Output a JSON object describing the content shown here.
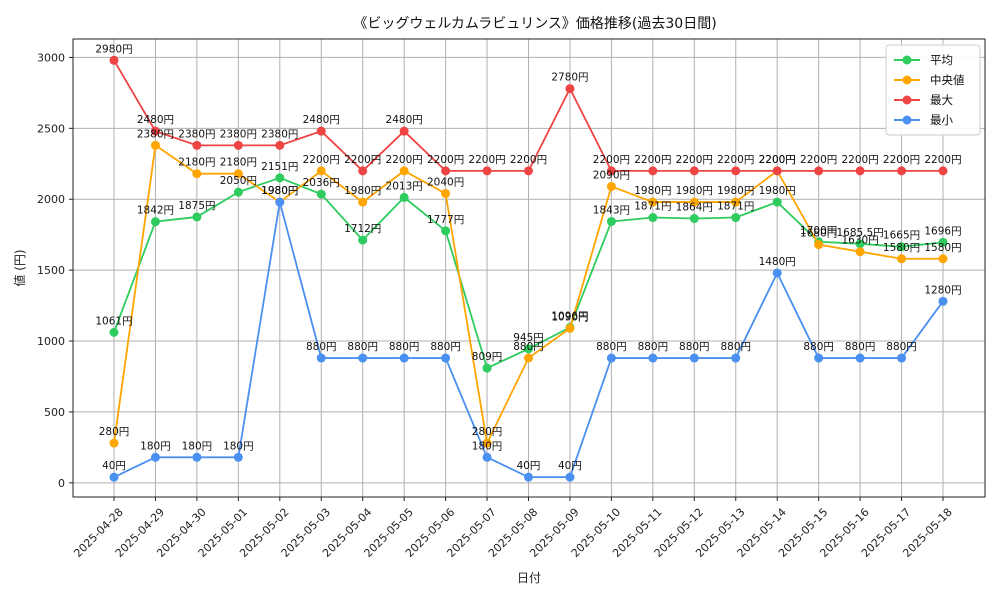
{
  "chart_data": {
    "type": "line",
    "title": "《ビッグウェルカムラビュリンス》価格推移(過去30日間)",
    "xlabel": "日付",
    "ylabel": "値 (円)",
    "ylim": [
      -100,
      3130
    ],
    "yticks": [
      0,
      500,
      1000,
      1500,
      2000,
      2500,
      3000
    ],
    "grid": true,
    "legend_position": "top-right",
    "value_suffix": "円",
    "categories": [
      "2025-04-28",
      "2025-04-29",
      "2025-04-30",
      "2025-05-01",
      "2025-05-02",
      "2025-05-03",
      "2025-05-04",
      "2025-05-05",
      "2025-05-06",
      "2025-05-07",
      "2025-05-08",
      "2025-05-09",
      "2025-05-10",
      "2025-05-11",
      "2025-05-12",
      "2025-05-13",
      "2025-05-14",
      "2025-05-15",
      "2025-05-16",
      "2025-05-17",
      "2025-05-18"
    ],
    "series": [
      {
        "name": "平均",
        "color": "#2ecc5f",
        "values": [
          1061,
          1842,
          1875,
          2050,
          2151,
          2036,
          1712,
          2013,
          1777,
          809,
          945,
          1096,
          1843,
          1871,
          1864,
          1871,
          1980,
          1700,
          1685.5,
          1665,
          1696
        ]
      },
      {
        "name": "中央値",
        "color": "#ffa500",
        "values": [
          280,
          2380,
          2180,
          2180,
          1980,
          2200,
          1980,
          2200,
          2040,
          280,
          880,
          1090,
          2090,
          1980,
          1980,
          1980,
          2200,
          1680,
          1630,
          1580,
          1580
        ]
      },
      {
        "name": "最大",
        "color": "#ef4444",
        "values": [
          2980,
          2480,
          2380,
          2380,
          2380,
          2480,
          2200,
          2480,
          2200,
          2200,
          2200,
          2780,
          2200,
          2200,
          2200,
          2200,
          2200,
          2200,
          2200,
          2200,
          2200
        ]
      },
      {
        "name": "最小",
        "color": "#4a90f0",
        "values": [
          40,
          180,
          180,
          180,
          1980,
          880,
          880,
          880,
          880,
          180,
          40,
          40,
          880,
          880,
          880,
          880,
          1480,
          880,
          880,
          880,
          1280
        ]
      }
    ]
  }
}
